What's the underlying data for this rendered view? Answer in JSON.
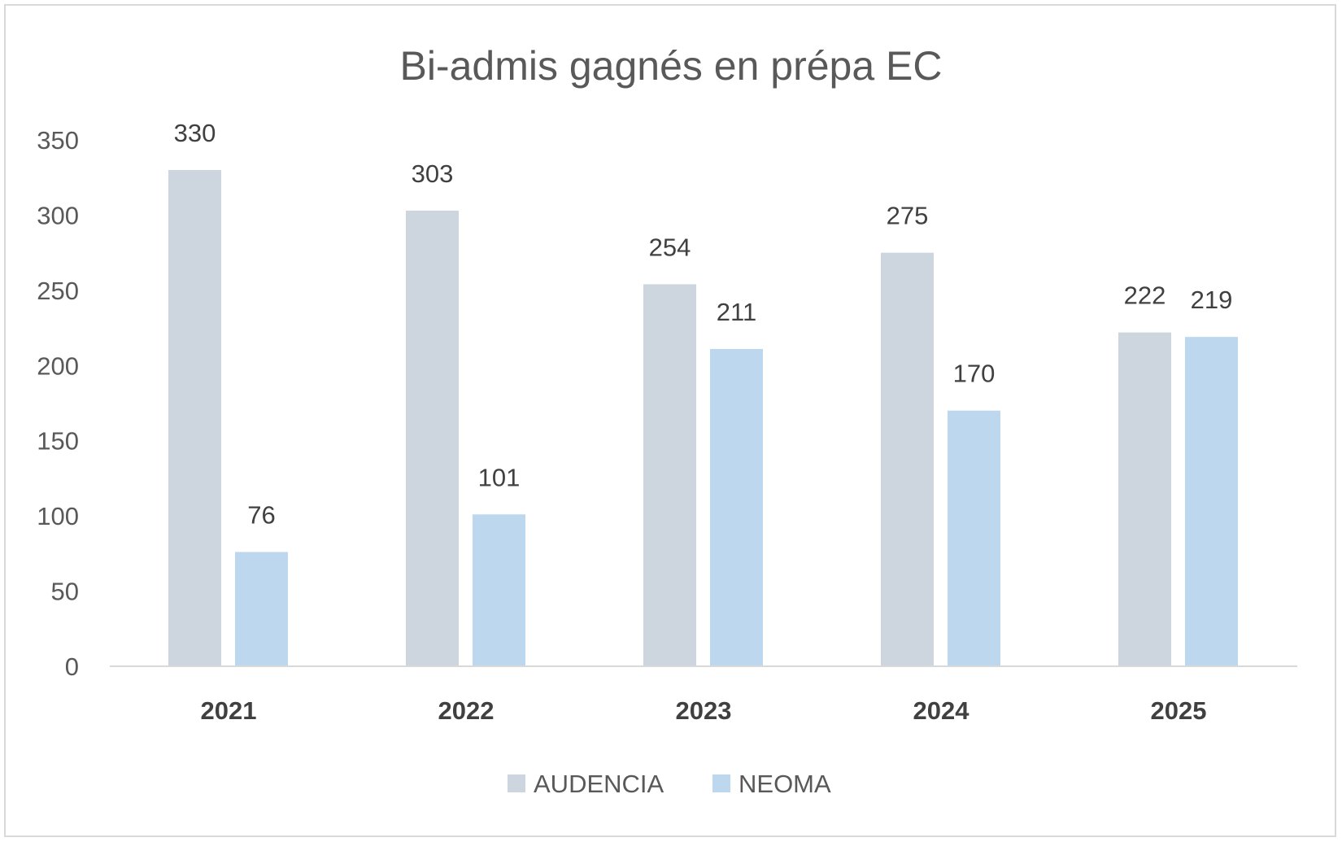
{
  "chart_data": {
    "type": "bar",
    "title": "Bi-admis gagnés en prépa EC",
    "xlabel": "",
    "ylabel": "",
    "categories": [
      "2021",
      "2022",
      "2023",
      "2024",
      "2025"
    ],
    "series": [
      {
        "name": "AUDENCIA",
        "color": "#CDD5DF",
        "values": [
          330,
          303,
          254,
          275,
          222
        ]
      },
      {
        "name": "NEOMA",
        "color": "#BDD7EE",
        "values": [
          76,
          101,
          211,
          170,
          219
        ]
      }
    ],
    "ylim": [
      0,
      350
    ],
    "yticks": [
      0,
      50,
      100,
      150,
      200,
      250,
      300,
      350
    ],
    "grid": false,
    "data_labels": true,
    "legend_position": "bottom"
  }
}
